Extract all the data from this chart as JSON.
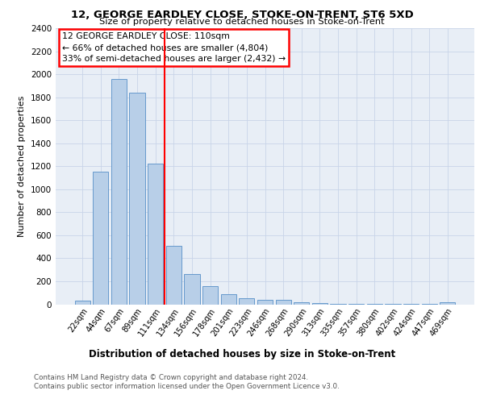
{
  "title": "12, GEORGE EARDLEY CLOSE, STOKE-ON-TRENT, ST6 5XD",
  "subtitle": "Size of property relative to detached houses in Stoke-on-Trent",
  "xlabel": "Distribution of detached houses by size in Stoke-on-Trent",
  "ylabel": "Number of detached properties",
  "categories": [
    "22sqm",
    "44sqm",
    "67sqm",
    "89sqm",
    "111sqm",
    "134sqm",
    "156sqm",
    "178sqm",
    "201sqm",
    "223sqm",
    "246sqm",
    "268sqm",
    "290sqm",
    "313sqm",
    "335sqm",
    "357sqm",
    "380sqm",
    "402sqm",
    "424sqm",
    "447sqm",
    "469sqm"
  ],
  "values": [
    30,
    1155,
    1960,
    1840,
    1220,
    510,
    265,
    155,
    85,
    50,
    40,
    40,
    20,
    10,
    5,
    5,
    5,
    5,
    5,
    5,
    20
  ],
  "bar_color": "#b8cfe8",
  "bar_edge_color": "#6699cc",
  "ref_line_index": 4,
  "ref_line_color": "red",
  "annotation_box_text": "12 GEORGE EARDLEY CLOSE: 110sqm\n← 66% of detached houses are smaller (4,804)\n33% of semi-detached houses are larger (2,432) →",
  "annotation_box_color": "red",
  "ylim": [
    0,
    2400
  ],
  "yticks": [
    0,
    200,
    400,
    600,
    800,
    1000,
    1200,
    1400,
    1600,
    1800,
    2000,
    2200,
    2400
  ],
  "footer_line1": "Contains HM Land Registry data © Crown copyright and database right 2024.",
  "footer_line2": "Contains public sector information licensed under the Open Government Licence v3.0.",
  "grid_color": "#c8d4e8",
  "facecolor": "#e8eef6"
}
